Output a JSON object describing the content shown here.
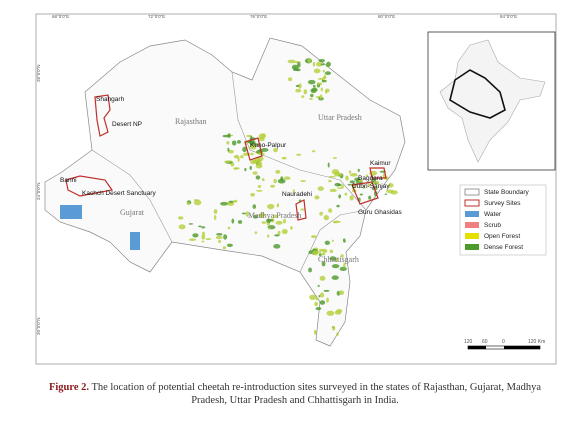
{
  "map": {
    "coordinates": {
      "top": [
        "68°0'0\"E",
        "72°0'0\"E",
        "76°0'0\"E",
        "80°0'0\"E",
        "84°0'0\"E"
      ],
      "left": [
        "28°0'0\"N",
        "24°0'0\"N",
        "20°0'0\"N"
      ]
    },
    "states": [
      "Rajasthan",
      "Uttar Pradesh",
      "Gujarat",
      "Madhya Pradesh",
      "Chhattisgarh"
    ],
    "sites": [
      "Shahgarh",
      "Desert NP",
      "Kuno-Palpur",
      "Banni",
      "Kachch Desert Sanctuary",
      "Nauradehi",
      "Kaimur",
      "Bagdara",
      "Dubri-Sanjay",
      "Guru Ghasidas"
    ],
    "legend": [
      "State Boundary",
      "Survey Sites",
      "Water",
      "Scrub",
      "Open Forest",
      "Dense Forest"
    ],
    "scale_bar": [
      "120",
      "60",
      "0",
      "120 Km"
    ]
  },
  "caption": {
    "label": "Figure 2.",
    "text": "The location of potential cheetah re-introduction sites surveyed in the states of Rajasthan, Gujarat, Madhya Pradesh, Uttar Pradesh and Chhattisgarh in India."
  }
}
